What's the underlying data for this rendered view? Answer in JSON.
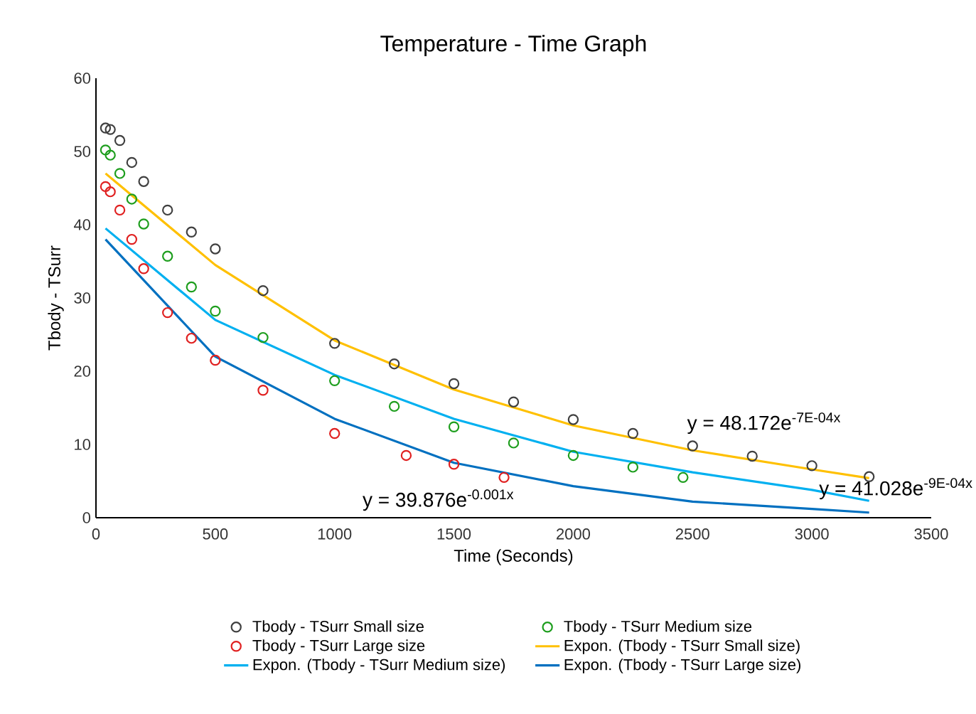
{
  "chart_data": {
    "type": "scatter",
    "title": "Temperature - Time Graph",
    "xlabel": "Time (Seconds)",
    "ylabel": "Tbody - TSurr",
    "xlim": [
      0,
      3500
    ],
    "xticks": [
      0,
      500,
      1000,
      1500,
      2000,
      2500,
      3000,
      3500
    ],
    "ylim": [
      0,
      60
    ],
    "yticks": [
      0,
      10,
      20,
      30,
      40,
      50,
      60
    ],
    "grid": false,
    "legend": "bottom",
    "series": [
      {
        "name": "Tbody - TSurr Small size",
        "marker": "circle",
        "color": "#404040",
        "x": [
          40,
          60,
          100,
          150,
          200,
          300,
          400,
          500,
          700,
          1000,
          1250,
          1500,
          1750,
          2000,
          2250,
          2500,
          2750,
          3000,
          3240
        ],
        "values": [
          53.2,
          53,
          51.5,
          48.5,
          45.9,
          42,
          39,
          36.7,
          31,
          23.8,
          21,
          18.3,
          15.8,
          13.4,
          11.5,
          9.8,
          8.4,
          7.1,
          5.6
        ]
      },
      {
        "name": "Tbody - TSurr Medium size",
        "marker": "circle",
        "color": "#1e9e1e",
        "x": [
          40,
          60,
          100,
          150,
          200,
          300,
          400,
          500,
          700,
          1000,
          1250,
          1500,
          1750,
          2000,
          2250,
          2460
        ],
        "values": [
          50.2,
          49.5,
          47,
          43.5,
          40.1,
          35.7,
          31.5,
          28.2,
          24.6,
          18.7,
          15.2,
          12.4,
          10.2,
          8.5,
          6.9,
          5.5
        ]
      },
      {
        "name": "Tbody - TSurr Large size",
        "marker": "circle",
        "color": "#e02020",
        "x": [
          40,
          60,
          100,
          150,
          200,
          300,
          400,
          500,
          700,
          1000,
          1300,
          1500,
          1710
        ],
        "values": [
          45.2,
          44.5,
          42,
          38,
          34,
          28,
          24.5,
          21.5,
          17.4,
          11.5,
          8.5,
          7.3,
          5.5
        ]
      },
      {
        "name": "Expon. (Tbody - TSurr Small size)",
        "type": "line",
        "color": "#ffc000",
        "x": [
          40,
          500,
          1000,
          1500,
          2000,
          2500,
          3000,
          3240
        ],
        "values": [
          47,
          34.5,
          24.2,
          17.5,
          12.6,
          9.2,
          6.6,
          5.4
        ]
      },
      {
        "name": "Expon. (Tbody - TSurr Medium size)",
        "type": "line",
        "color": "#00b0f0",
        "x": [
          40,
          500,
          1000,
          1500,
          2000,
          2500,
          3000,
          3240
        ],
        "values": [
          39.5,
          27,
          19.5,
          13.5,
          9,
          6.2,
          3.8,
          2.3
        ]
      },
      {
        "name": "Expon. (Tbody - TSurr Large size)",
        "type": "line",
        "color": "#0070c0",
        "x": [
          40,
          500,
          1000,
          1500,
          2000,
          2500,
          3000,
          3240
        ],
        "values": [
          38,
          22,
          13.5,
          7.5,
          4.3,
          2.2,
          1.2,
          0.7
        ]
      }
    ],
    "annotations": [
      "y = 48.172e$^{-7E-04x}$",
      "y = 41.028e$^{-9E-04x}$",
      "y = 39.876e$^{-0.001x}$"
    ]
  }
}
